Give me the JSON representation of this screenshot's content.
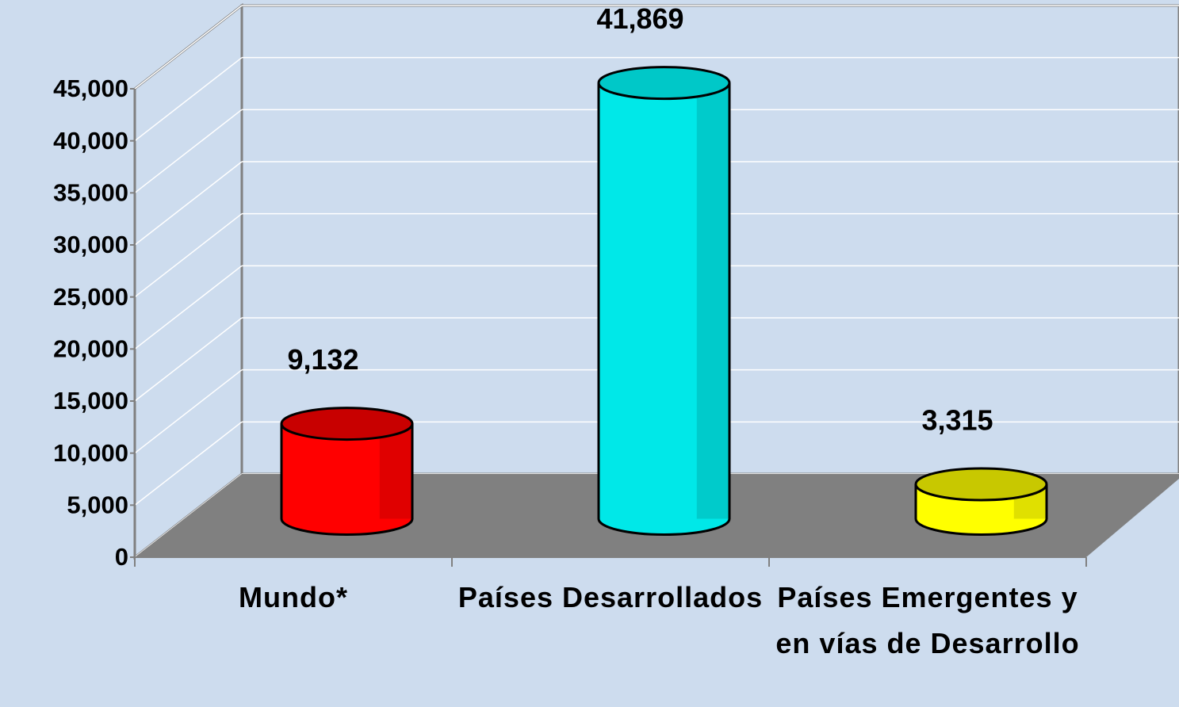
{
  "chart_data": {
    "type": "bar3d",
    "categories": [
      "Mundo*",
      "Países Desarrollados",
      "Países Emergentes y en vías de Desarrollo"
    ],
    "values": [
      9132,
      41869,
      3315
    ],
    "value_labels": [
      "9,132",
      "41,869",
      "3,315"
    ],
    "colors": [
      "#ff0000",
      "#00e8e8",
      "#ffff00"
    ],
    "top_colors": [
      "#c80000",
      "#00c8c8",
      "#c8c800"
    ],
    "ylim": [
      0,
      45000
    ],
    "yticks": [
      0,
      {
        "value": 5000,
        "label": "5,000"
      },
      {
        "value": 10000,
        "label": "10,000"
      },
      {
        "value": 15000,
        "label": "15,000"
      },
      {
        "value": 20000,
        "label": "20,000"
      },
      {
        "value": 25000,
        "label": "25,000"
      },
      {
        "value": 30000,
        "label": "30,000"
      },
      {
        "value": 35000,
        "label": "35,000"
      },
      {
        "value": 40000,
        "label": "40,000"
      },
      {
        "value": 45000,
        "label": "45,000"
      }
    ],
    "grid": true
  }
}
